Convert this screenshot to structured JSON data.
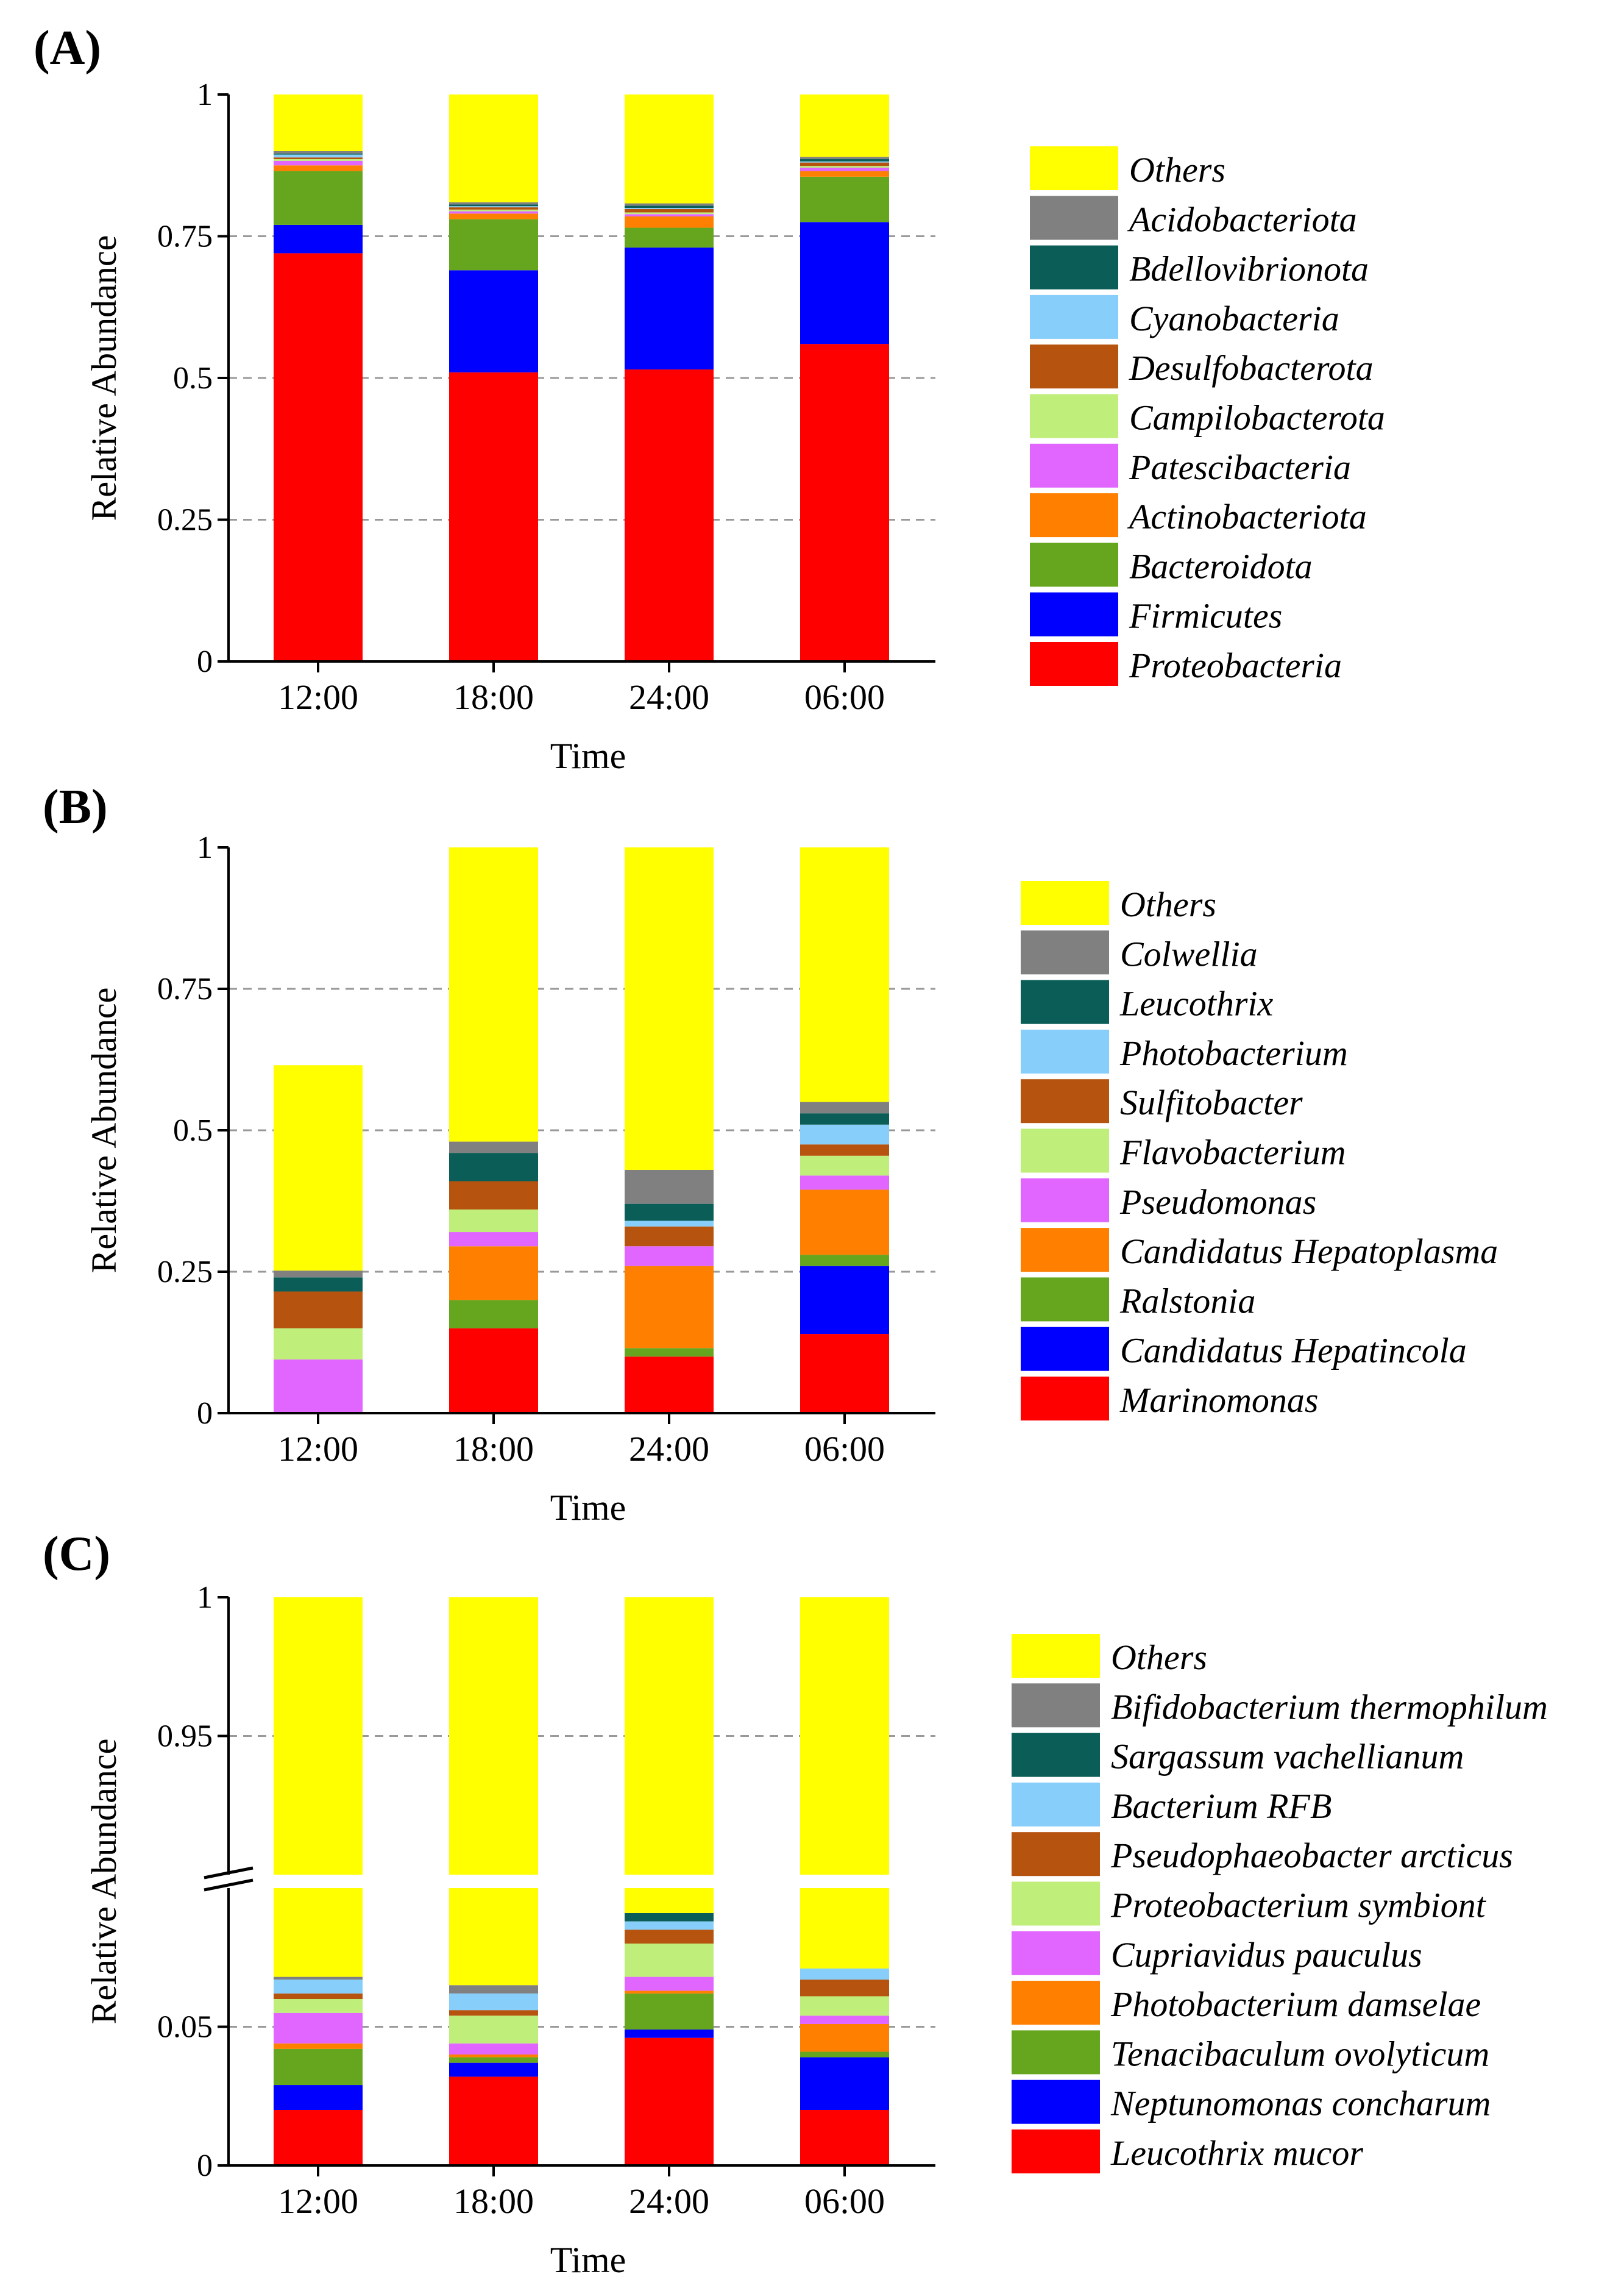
{
  "chart_data": [
    {
      "panel_label": "(A)",
      "type": "bar",
      "stacked": true,
      "categories": [
        "12:00",
        "18:00",
        "24:00",
        "06:00"
      ],
      "xlabel": "Time",
      "ylabel": "Relative Abundance",
      "ylim": [
        0,
        1
      ],
      "yticks": [
        0,
        0.25,
        0.5,
        0.75,
        1
      ],
      "ytick_labels": [
        "0",
        "0.25",
        "0.5",
        "0.75",
        "1"
      ],
      "grid": "dashed horizontal at 0.25, 0.5, 0.75",
      "legend_position": "right",
      "series": [
        {
          "name": "Proteobacteria",
          "color": "#ff0000",
          "values": [
            0.72,
            0.51,
            0.515,
            0.56
          ]
        },
        {
          "name": "Firmicutes",
          "color": "#0000ff",
          "values": [
            0.05,
            0.18,
            0.215,
            0.215
          ]
        },
        {
          "name": "Bacteroidota",
          "color": "#66a61e",
          "values": [
            0.095,
            0.09,
            0.035,
            0.08
          ]
        },
        {
          "name": "Actinobacteriota",
          "color": "#ff7f00",
          "values": [
            0.01,
            0.01,
            0.02,
            0.01
          ]
        },
        {
          "name": "Patescibacteria",
          "color": "#e066ff",
          "values": [
            0.008,
            0.004,
            0.004,
            0.006
          ]
        },
        {
          "name": "Campilobacterota",
          "color": "#bfef7a",
          "values": [
            0.003,
            0.003,
            0.003,
            0.003
          ]
        },
        {
          "name": "Desulfobacterota",
          "color": "#b5530f",
          "values": [
            0.003,
            0.004,
            0.006,
            0.006
          ]
        },
        {
          "name": "Cyanobacteria",
          "color": "#87cefa",
          "values": [
            0.005,
            0.002,
            0.002,
            0.002
          ]
        },
        {
          "name": "Bdellovibrionota",
          "color": "#0b5e57",
          "values": [
            0.002,
            0.003,
            0.004,
            0.004
          ]
        },
        {
          "name": "Acidobacteriota",
          "color": "#808080",
          "values": [
            0.004,
            0.004,
            0.004,
            0.004
          ]
        },
        {
          "name": "Others",
          "color": "#ffff00",
          "values": [
            0.1,
            0.19,
            0.192,
            0.11
          ]
        }
      ]
    },
    {
      "panel_label": "(B)",
      "type": "bar",
      "stacked": true,
      "categories": [
        "12:00",
        "18:00",
        "24:00",
        "06:00"
      ],
      "xlabel": "Time",
      "ylabel": "Relative Abundance",
      "ylim": [
        0,
        1
      ],
      "yticks": [
        0,
        0.25,
        0.5,
        0.75,
        1
      ],
      "ytick_labels": [
        "0",
        "0.25",
        "0.5",
        "0.75",
        "1"
      ],
      "grid": "dashed horizontal at 0.25, 0.5, 0.75",
      "legend_position": "right",
      "series": [
        {
          "name": "Marinomonas",
          "color": "#ff0000",
          "values": [
            0.0,
            0.15,
            0.1,
            0.14
          ]
        },
        {
          "name": "Candidatus Hepatincola",
          "color": "#0000ff",
          "values": [
            0.0,
            0.0,
            0.0,
            0.12
          ]
        },
        {
          "name": "Ralstonia",
          "color": "#66a61e",
          "values": [
            0.0,
            0.05,
            0.015,
            0.02
          ]
        },
        {
          "name": "Candidatus Hepatoplasma",
          "color": "#ff7f00",
          "values": [
            0.0,
            0.095,
            0.145,
            0.115
          ]
        },
        {
          "name": "Pseudomonas",
          "color": "#e066ff",
          "values": [
            0.095,
            0.025,
            0.035,
            0.025
          ]
        },
        {
          "name": "Flavobacterium",
          "color": "#bfef7a",
          "values": [
            0.055,
            0.04,
            0.0,
            0.035
          ]
        },
        {
          "name": "Sulfitobacter",
          "color": "#b5530f",
          "values": [
            0.065,
            0.05,
            0.035,
            0.02
          ]
        },
        {
          "name": "Photobacterium",
          "color": "#87cefa",
          "values": [
            0.0,
            0.0,
            0.01,
            0.035
          ]
        },
        {
          "name": "Leucothrix",
          "color": "#0b5e57",
          "values": [
            0.025,
            0.05,
            0.03,
            0.02
          ]
        },
        {
          "name": "Colwellia",
          "color": "#808080",
          "values": [
            0.012,
            0.02,
            0.06,
            0.02
          ]
        },
        {
          "name": "Others",
          "color": "#ffff00",
          "values": [
            0.363,
            0.52,
            0.57,
            0.45
          ]
        }
      ]
    },
    {
      "panel_label": "(C)",
      "type": "bar",
      "stacked": true,
      "broken_axis": true,
      "categories": [
        "12:00",
        "18:00",
        "24:00",
        "06:00"
      ],
      "xlabel": "Time",
      "ylabel": "Relative Abundance",
      "ylim": [
        0,
        1
      ],
      "axis_break": [
        0.1,
        0.9
      ],
      "yticks": [
        0,
        0.05,
        0.95,
        1
      ],
      "ytick_labels": [
        "0",
        "0.05",
        "0.95",
        "1"
      ],
      "grid": "dashed horizontal at 0.05 and 0.95",
      "legend_position": "right",
      "series": [
        {
          "name": "Leucothrix mucor",
          "color": "#ff0000",
          "values": [
            0.02,
            0.032,
            0.046,
            0.02
          ]
        },
        {
          "name": "Neptunomonas concharum",
          "color": "#0000ff",
          "values": [
            0.009,
            0.005,
            0.003,
            0.019
          ]
        },
        {
          "name": "Tenacibaculum ovolyticum",
          "color": "#66a61e",
          "values": [
            0.013,
            0.002,
            0.013,
            0.002
          ]
        },
        {
          "name": "Photobacterium damselae",
          "color": "#ff7f00",
          "values": [
            0.002,
            0.001,
            0.001,
            0.01
          ]
        },
        {
          "name": "Cupriavidus pauculus",
          "color": "#e066ff",
          "values": [
            0.011,
            0.004,
            0.005,
            0.003
          ]
        },
        {
          "name": "Proteobacterium symbiont",
          "color": "#bfef7a",
          "values": [
            0.005,
            0.01,
            0.012,
            0.007
          ]
        },
        {
          "name": "Pseudophaeobacter arcticus",
          "color": "#b5530f",
          "values": [
            0.002,
            0.002,
            0.005,
            0.006
          ]
        },
        {
          "name": "Bacterium RFB",
          "color": "#87cefa",
          "values": [
            0.005,
            0.006,
            0.003,
            0.004
          ]
        },
        {
          "name": "Sargassum vachellianum",
          "color": "#0b5e57",
          "values": [
            0.0,
            0.0,
            0.003,
            0.0
          ]
        },
        {
          "name": "Bifidobacterium thermophilum",
          "color": "#808080",
          "values": [
            0.001,
            0.003,
            0.0,
            0.0
          ]
        },
        {
          "name": "Others",
          "color": "#ffff00",
          "values": [
            0.932,
            0.935,
            0.909,
            0.929
          ]
        }
      ]
    }
  ]
}
